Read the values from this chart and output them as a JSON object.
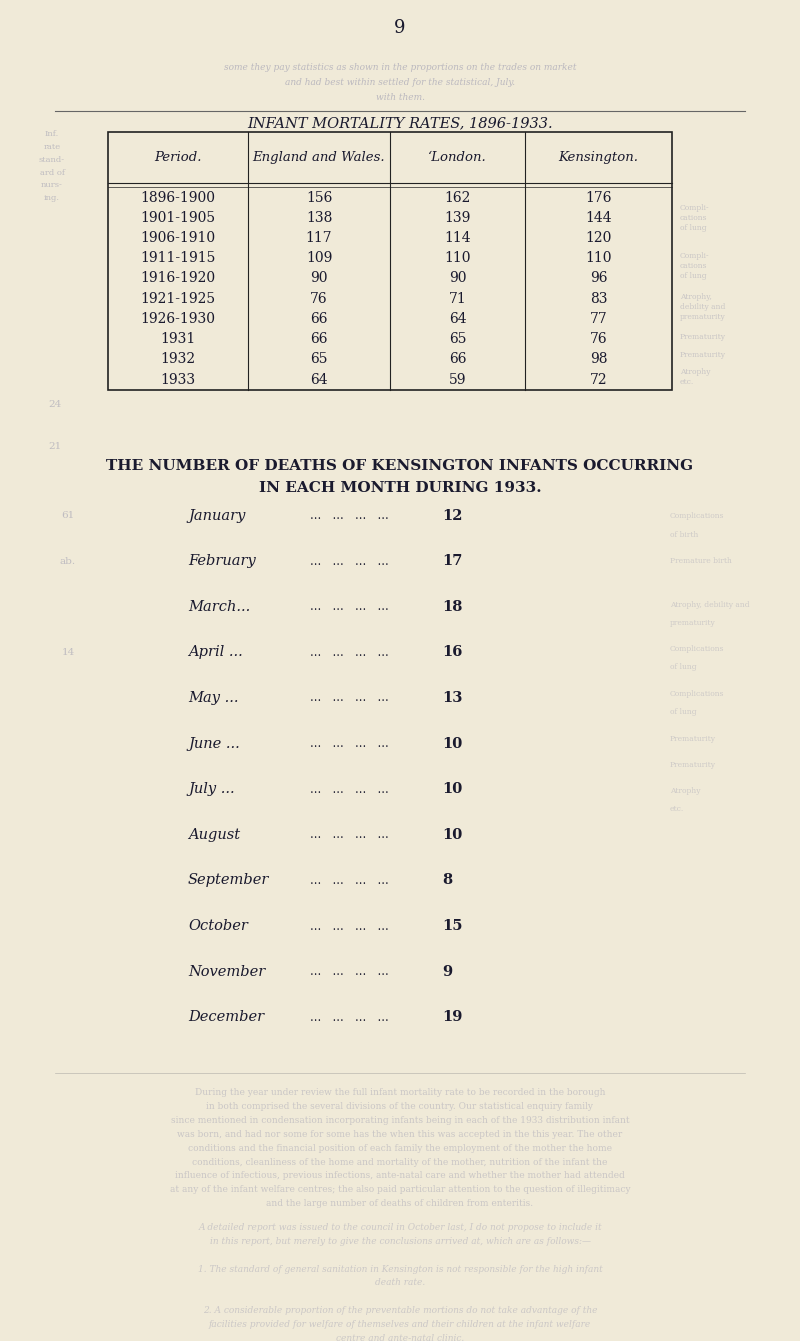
{
  "page_number": "9",
  "bg_color": "#f0ead8",
  "table_title": "INFANT MORTALITY RATES, 1896-1933.",
  "table_headers": [
    "Period.",
    "England and Wales.",
    "‘London.",
    "Kensington."
  ],
  "table_rows": [
    [
      "1896-1900",
      "156",
      "162",
      "176"
    ],
    [
      "1901-1905",
      "138",
      "139",
      "144"
    ],
    [
      "1906-1910",
      "117",
      "114",
      "120"
    ],
    [
      "1911-1915",
      "109",
      "110",
      "110"
    ],
    [
      "1916-1920",
      "90",
      "90",
      "96"
    ],
    [
      "1921-1925",
      "76",
      "71",
      "83"
    ],
    [
      "1926-1930",
      "66",
      "64",
      "77"
    ],
    [
      "1931",
      "66",
      "65",
      "76"
    ],
    [
      "1932",
      "65",
      "66",
      "98"
    ],
    [
      "1933",
      "64",
      "59",
      "72"
    ]
  ],
  "section2_title_line1": "THE NUMBER OF DEATHS OF KENSINGTON INFANTS OCCURRING",
  "section2_title_line2": "IN EACH MONTH DURING 1933.",
  "months": [
    [
      "January",
      "12"
    ],
    [
      "February",
      "17"
    ],
    [
      "March...",
      "18"
    ],
    [
      "April ...",
      "16"
    ],
    [
      "May ...",
      "13"
    ],
    [
      "June ...",
      "10"
    ],
    [
      "July ...",
      "10"
    ],
    [
      "August",
      "10"
    ],
    [
      "September",
      "8"
    ],
    [
      "October",
      "15"
    ],
    [
      "November",
      "9"
    ],
    [
      "December",
      "19"
    ]
  ],
  "text_color": "#1a1a2e",
  "faded_color": "#9090aa",
  "border_color": "#222222"
}
